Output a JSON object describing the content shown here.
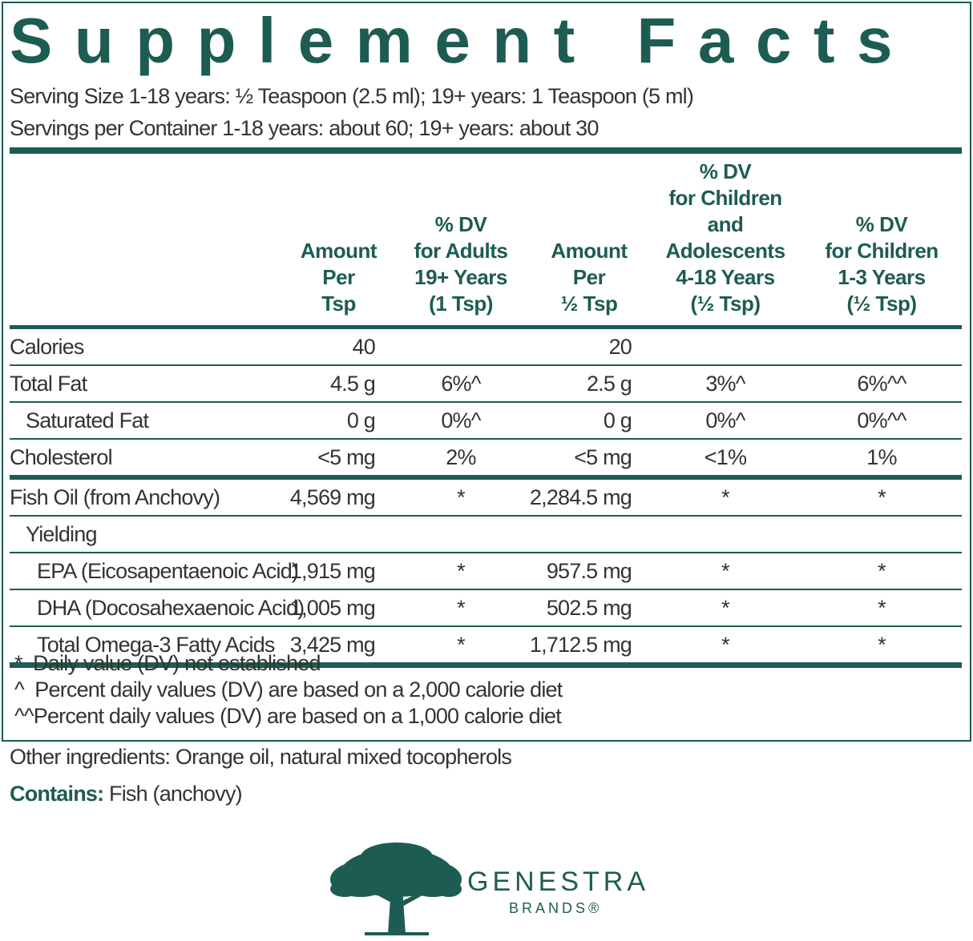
{
  "title": "Supplement Facts",
  "serving": [
    "Serving Size 1-18 years: ½  Teaspoon (2.5 ml); 19+ years: 1 Teaspoon (5 ml)",
    "Servings per Container 1-18 years: about 60; 19+ years: about 30"
  ],
  "table": {
    "columns": [
      "Amount\nPer\nTsp",
      "% DV\nfor Adults\n19+ Years\n(1 Tsp)",
      "Amount\nPer\n½ Tsp",
      "% DV\nfor Children and\nAdolescents\n4-18 Years\n(½ Tsp)",
      "% DV\nfor Children\n1-3 Years\n(½ Tsp)"
    ],
    "rows": [
      {
        "label": "Calories",
        "cells": [
          "40",
          null,
          "20",
          null,
          null
        ]
      },
      {
        "label": "Total Fat",
        "cells": [
          "4.5 g",
          "6%^",
          "2.5 g",
          "3%^",
          "6%^^"
        ]
      },
      {
        "label": "Saturated Fat",
        "cells": [
          "0 g",
          "0%^",
          "0 g",
          "0%^",
          "0%^^"
        ]
      },
      {
        "label": "Cholesterol",
        "cells": [
          "<5 mg",
          "2%",
          "<5 mg",
          "<1%",
          "1%"
        ]
      },
      {
        "label": "Fish Oil (from Anchovy)",
        "cells": [
          "4,569 mg",
          "*",
          "2,284.5 mg",
          "*",
          "*"
        ]
      },
      {
        "label": "Yielding",
        "cells": [
          null,
          null,
          null,
          null,
          null
        ]
      },
      {
        "label": "EPA (Eicosapentaenoic Acid)",
        "cells": [
          "1,915 mg",
          "*",
          "957.5 mg",
          "*",
          "*"
        ]
      },
      {
        "label": "DHA (Docosahexaenoic Acid)",
        "cells": [
          "1,005 mg",
          "*",
          "502.5 mg",
          "*",
          "*"
        ]
      },
      {
        "label": "Total Omega-3 Fatty Acids",
        "cells": [
          "3,425 mg",
          "*",
          "1,712.5 mg",
          "*",
          "*"
        ]
      }
    ]
  },
  "footnotes": [
    "*  Daily value (DV) not established",
    "^  Percent daily values (DV) are based on a 2,000 calorie diet",
    "^^Percent daily values (DV) are based on a 1,000 calorie diet"
  ],
  "other_ingredients": "Other ingredients: Orange oil, natural mixed tocopherols",
  "contains": {
    "label": "Contains:",
    "text": "Fish (anchovy)"
  },
  "logo": {
    "name": "GENESTRA",
    "sub": "BRANDS®"
  }
}
